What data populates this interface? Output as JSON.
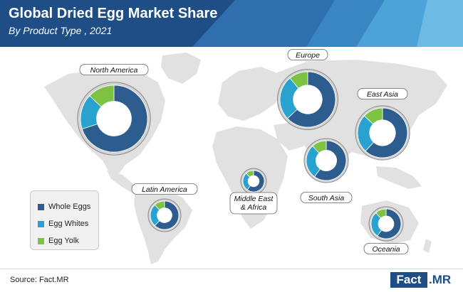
{
  "header": {
    "title": "Global Dried Egg Market Share",
    "subtitle": "By Product Type , 2021"
  },
  "colors": {
    "header_dark": "#1f4e87",
    "header_mid": "#2f6fae",
    "header_light": "#4fa8dc",
    "whole_eggs": "#2d5c8f",
    "egg_whites": "#2aa2cf",
    "egg_yolk": "#7dc242",
    "map_land": "#e1e1e1",
    "ring": "#d2d2d2",
    "ring_border": "#8a8a8a"
  },
  "legend": {
    "items": [
      {
        "label": "Whole Eggs",
        "color": "#2d5c8f"
      },
      {
        "label": "Egg Whites",
        "color": "#2aa2cf"
      },
      {
        "label": "Egg Yolk",
        "color": "#7dc242"
      }
    ]
  },
  "chart_data": {
    "type": "donut",
    "title": "Global Dried Egg Market Share",
    "subtitle": "By Product Type , 2021",
    "categories": [
      "Whole Eggs",
      "Egg Whites",
      "Egg Yolk"
    ],
    "regions": [
      {
        "name": "North America",
        "values": [
          70,
          17,
          13
        ]
      },
      {
        "name": "Europe",
        "values": [
          63,
          26,
          11
        ]
      },
      {
        "name": "East Asia",
        "values": [
          62,
          25,
          13
        ]
      },
      {
        "name": "South Asia",
        "values": [
          60,
          28,
          12
        ]
      },
      {
        "name": "Latin America",
        "values": [
          62,
          26,
          12
        ]
      },
      {
        "name": "Middle East & Africa",
        "values": [
          60,
          28,
          12
        ]
      },
      {
        "name": "Oceania",
        "values": [
          60,
          28,
          12
        ]
      }
    ]
  },
  "footer": {
    "source": "Source: Fact.MR",
    "logo_part1": "Fact",
    "logo_part2": ".MR"
  }
}
